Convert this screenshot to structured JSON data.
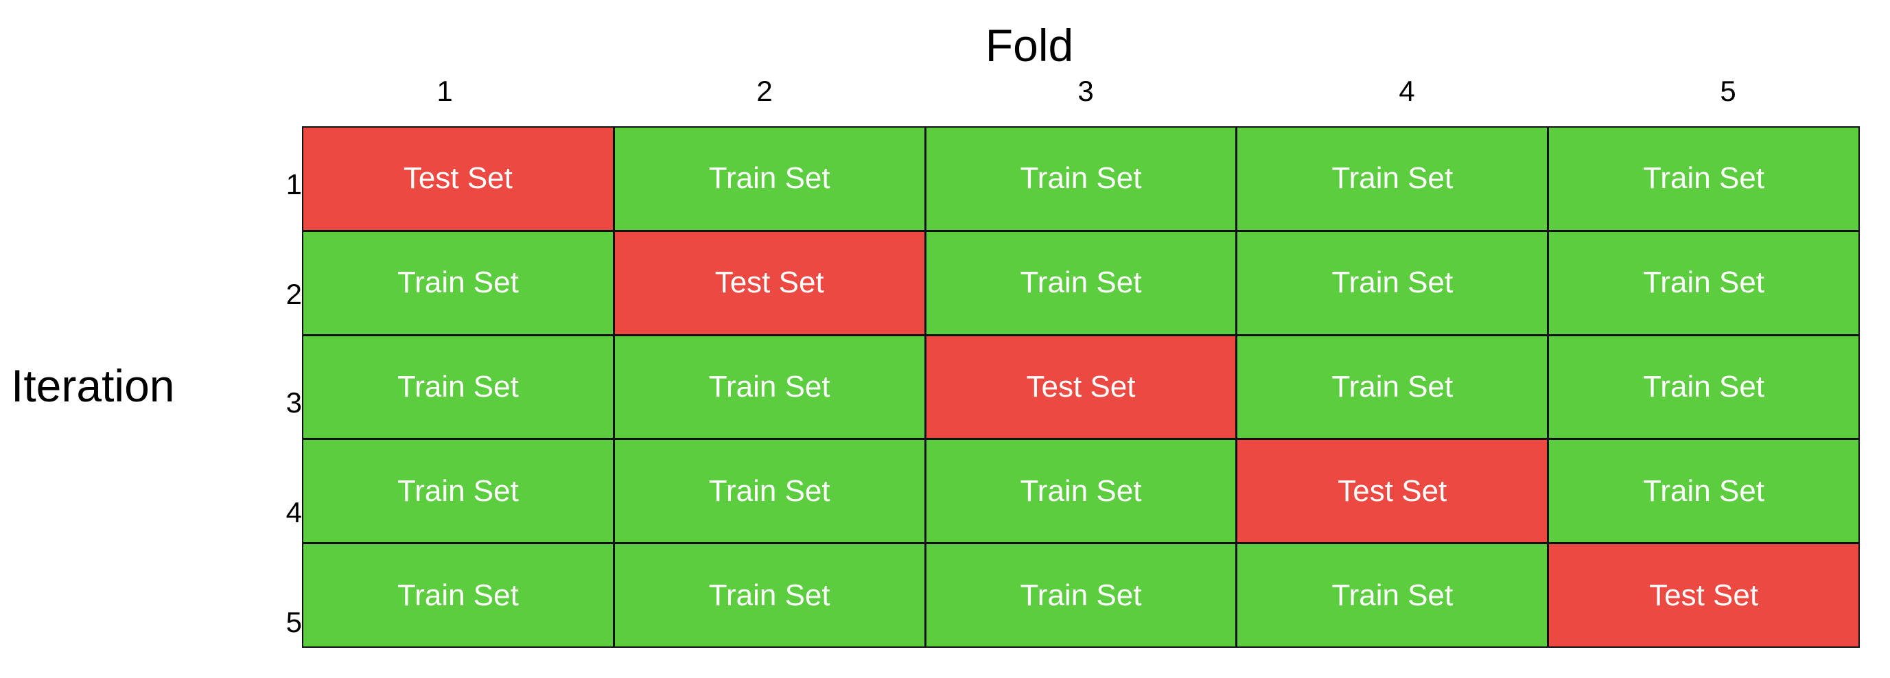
{
  "titles": {
    "fold": "Fold",
    "iteration": "Iteration"
  },
  "fold_labels": [
    "1",
    "2",
    "3",
    "4",
    "5"
  ],
  "iteration_labels": [
    "1",
    "2",
    "3",
    "4",
    "5"
  ],
  "cell_labels": {
    "train": "Train Set",
    "test": "Test Set"
  },
  "colors": {
    "train": "#5ccd3f",
    "test": "#ec4942",
    "border": "#111111"
  },
  "grid": [
    [
      "Test Set",
      "Train Set",
      "Train Set",
      "Train Set",
      "Train Set"
    ],
    [
      "Train Set",
      "Test Set",
      "Train Set",
      "Train Set",
      "Train Set"
    ],
    [
      "Train Set",
      "Train Set",
      "Test Set",
      "Train Set",
      "Train Set"
    ],
    [
      "Train Set",
      "Train Set",
      "Train Set",
      "Test Set",
      "Train Set"
    ],
    [
      "Train Set",
      "Train Set",
      "Train Set",
      "Train Set",
      "Test Set"
    ]
  ]
}
